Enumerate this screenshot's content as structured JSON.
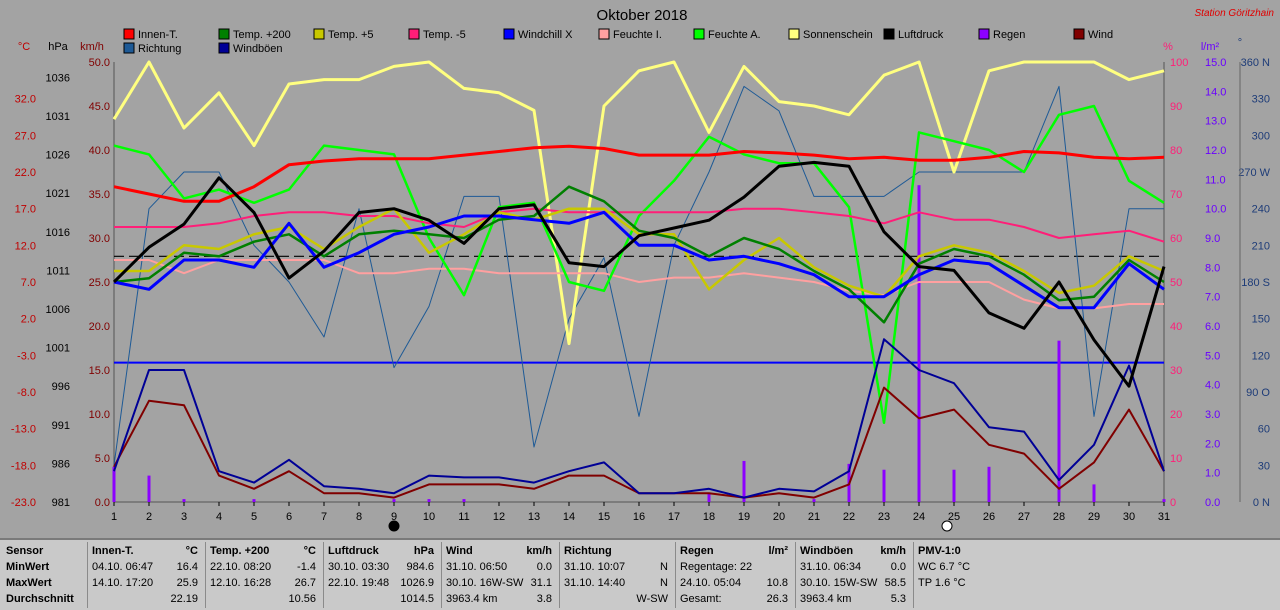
{
  "station": "Station Göritzhain",
  "colors": {
    "innen": "#ff0000",
    "t200": "#008000",
    "t5": "#c8c800",
    "tm5": "#ff1e78",
    "windchill": "#0000ff",
    "feuchteI": "#ffa0a0",
    "feuchteA": "#00ff00",
    "sonne": "#ffff80",
    "luftdruck": "#000000",
    "regen": "#8c00ff",
    "wind": "#800000",
    "richtung": "#1e5a96",
    "windboeen": "#000096"
  },
  "chart_data": {
    "type": "line",
    "title": "Oktober 2018",
    "x": [
      1,
      2,
      3,
      4,
      5,
      6,
      7,
      8,
      9,
      10,
      11,
      12,
      13,
      14,
      15,
      16,
      17,
      18,
      19,
      20,
      21,
      22,
      23,
      24,
      25,
      26,
      27,
      28,
      29,
      30,
      31
    ],
    "axes": {
      "temp": {
        "unit": "°C",
        "range": [
          -23,
          37
        ],
        "ticks": [
          "-23.0",
          "-18.0",
          "-13.0",
          "-8.0",
          "-3.0",
          "2.0",
          "7.0",
          "12.0",
          "17.0",
          "22.0",
          "27.0",
          "32.0"
        ],
        "tick_values": [
          -23,
          -18,
          -13,
          -8,
          -3,
          2,
          7,
          12,
          17,
          22,
          27,
          32
        ]
      },
      "pressure": {
        "unit": "hPa",
        "range": [
          981,
          1038
        ],
        "ticks": [
          "981",
          "986",
          "991",
          "996",
          "1001",
          "1006",
          "1011",
          "1016",
          "1021",
          "1026",
          "1031",
          "1036"
        ],
        "tick_values": [
          981,
          986,
          991,
          996,
          1001,
          1006,
          1011,
          1016,
          1021,
          1026,
          1031,
          1036
        ]
      },
      "wind": {
        "unit": "km/h",
        "range": [
          0,
          50
        ],
        "ticks": [
          "0.0",
          "5.0",
          "10.0",
          "15.0",
          "20.0",
          "25.0",
          "30.0",
          "35.0",
          "40.0",
          "45.0",
          "50.0"
        ],
        "tick_values": [
          0,
          5,
          10,
          15,
          20,
          25,
          30,
          35,
          40,
          45,
          50
        ]
      },
      "humidity": {
        "unit": "%",
        "range": [
          0,
          100
        ],
        "ticks": [
          "0",
          "10",
          "20",
          "30",
          "40",
          "50",
          "60",
          "70",
          "80",
          "90",
          "100"
        ],
        "tick_values": [
          0,
          10,
          20,
          30,
          40,
          50,
          60,
          70,
          80,
          90,
          100
        ]
      },
      "rain": {
        "unit": "l/m²",
        "range": [
          0,
          15
        ],
        "ticks": [
          "0.0",
          "1.0",
          "2.0",
          "3.0",
          "4.0",
          "5.0",
          "6.0",
          "7.0",
          "8.0",
          "9.0",
          "10.0",
          "11.0",
          "12.0",
          "13.0",
          "14.0",
          "15.0"
        ],
        "tick_values": [
          0,
          1,
          2,
          3,
          4,
          5,
          6,
          7,
          8,
          9,
          10,
          11,
          12,
          13,
          14,
          15
        ]
      },
      "direction": {
        "unit": "°",
        "range": [
          0,
          360
        ],
        "ticks": [
          "0 N",
          "30",
          "60",
          "90 O",
          "120",
          "150",
          "180 S",
          "210",
          "240",
          "270 W",
          "300",
          "330",
          "360 N"
        ],
        "tick_values": [
          0,
          30,
          60,
          90,
          120,
          150,
          180,
          210,
          240,
          270,
          300,
          330,
          360
        ]
      }
    },
    "series": [
      {
        "name": "Innen-T.",
        "key": "innen",
        "axis": "temp",
        "values": [
          20.0,
          19.0,
          18.0,
          18.0,
          20.0,
          23.0,
          23.5,
          23.8,
          23.8,
          23.8,
          24.3,
          24.8,
          25.3,
          25.5,
          25.2,
          24.3,
          24.3,
          24.3,
          24.8,
          24.6,
          24.3,
          23.8,
          24.0,
          23.6,
          23.6,
          24.0,
          24.8,
          24.6,
          24.0,
          23.8,
          24.0
        ]
      },
      {
        "name": "Temp. +200",
        "key": "t200",
        "axis": "temp",
        "values": [
          7.0,
          7.5,
          11.0,
          10.5,
          12.5,
          13.5,
          10.5,
          13.5,
          14.0,
          13.5,
          13.0,
          15.5,
          16.0,
          20.0,
          18.0,
          14.0,
          13.0,
          10.5,
          13.0,
          11.5,
          8.5,
          6.0,
          1.5,
          9.5,
          11.5,
          10.5,
          8.0,
          4.5,
          5.0,
          10.0,
          7.0
        ]
      },
      {
        "name": "Temp. +5",
        "key": "t5",
        "axis": "temp",
        "values": [
          8.5,
          8.5,
          12.0,
          11.5,
          13.5,
          14.5,
          11.5,
          14.5,
          17.0,
          11.0,
          13.5,
          16.5,
          15.5,
          17.0,
          17.0,
          13.5,
          13.5,
          6.0,
          10.0,
          13.0,
          9.0,
          6.5,
          5.0,
          10.5,
          12.0,
          11.0,
          8.5,
          5.5,
          6.5,
          10.5,
          8.5
        ]
      },
      {
        "name": "Temp. -5",
        "key": "tm5",
        "axis": "temp",
        "values": [
          14.5,
          14.5,
          14.5,
          15.0,
          16.0,
          16.5,
          16.5,
          16.0,
          16.0,
          15.0,
          14.5,
          16.5,
          17.0,
          16.5,
          16.5,
          16.5,
          16.5,
          16.5,
          17.0,
          17.0,
          16.5,
          16.0,
          15.0,
          16.5,
          15.5,
          15.5,
          14.5,
          13.0,
          13.5,
          14.0,
          12.5
        ]
      },
      {
        "name": "Windchill X",
        "key": "windchill",
        "axis": "temp",
        "values": [
          7.0,
          6.0,
          10.0,
          10.0,
          9.0,
          15.0,
          9.0,
          11.0,
          13.5,
          14.5,
          16.0,
          16.0,
          15.5,
          15.0,
          16.5,
          12.0,
          12.0,
          10.0,
          10.5,
          9.5,
          8.0,
          5.0,
          5.0,
          8.0,
          10.0,
          9.5,
          6.5,
          3.5,
          3.5,
          9.5,
          6.0
        ]
      },
      {
        "name": "Feuchte I.",
        "key": "feuchteI",
        "axis": "humidity",
        "values": [
          55,
          55,
          52,
          55,
          55,
          55,
          55,
          52,
          52,
          53,
          53,
          52,
          52,
          52,
          52,
          50,
          51,
          51,
          52,
          51,
          50,
          48,
          47,
          50,
          50,
          50,
          46,
          44,
          44,
          45,
          45
        ]
      },
      {
        "name": "Feuchte A.",
        "key": "feuchteA",
        "axis": "humidity",
        "values": [
          81,
          79,
          69,
          71,
          68,
          71,
          81,
          80,
          79,
          60,
          47,
          67,
          68,
          50,
          48,
          65,
          73,
          83,
          79,
          77,
          77,
          67,
          18,
          84,
          82,
          80,
          75,
          88,
          90,
          73,
          68
        ]
      },
      {
        "name": "Sonnenschein",
        "key": "sonne",
        "axis": "wind",
        "values": [
          43.5,
          50.0,
          42.5,
          46.5,
          40.5,
          47.5,
          48.0,
          48.0,
          49.5,
          50.0,
          47.0,
          46.5,
          44.5,
          18.0,
          45.0,
          49.0,
          50.0,
          42.0,
          49.5,
          45.5,
          45.0,
          44.0,
          48.5,
          50.0,
          37.5,
          49.0,
          50.0,
          50.0,
          50.0,
          48.0,
          49.0
        ]
      },
      {
        "name": "Luftdruck",
        "key": "luftdruck",
        "axis": "pressure",
        "values": [
          1009.5,
          1014.0,
          1017.0,
          1023.0,
          1018.5,
          1010.0,
          1013.5,
          1018.5,
          1019.0,
          1017.5,
          1014.5,
          1019.0,
          1019.5,
          1012.0,
          1011.5,
          1015.5,
          1016.5,
          1017.5,
          1020.5,
          1024.5,
          1025.0,
          1024.5,
          1016.0,
          1011.5,
          1011.0,
          1005.5,
          1003.5,
          1009.5,
          1002.0,
          996.0,
          1011.5
        ]
      },
      {
        "name": "Wind",
        "key": "wind",
        "axis": "wind",
        "values": [
          4.0,
          11.5,
          11.0,
          3.0,
          1.5,
          3.5,
          1.0,
          1.0,
          0.5,
          2.0,
          2.0,
          2.0,
          1.5,
          3.0,
          3.0,
          1.0,
          1.0,
          1.0,
          0.5,
          1.0,
          0.5,
          2.0,
          13.0,
          9.5,
          10.5,
          6.5,
          5.5,
          1.5,
          4.5,
          10.5,
          3.5
        ]
      },
      {
        "name": "Richtung",
        "key": "richtung",
        "axis": "direction",
        "values": [
          30,
          240,
          270,
          270,
          210,
          180,
          135,
          240,
          110,
          160,
          250,
          250,
          45,
          150,
          200,
          70,
          210,
          270,
          340,
          320,
          250,
          250,
          250,
          270,
          270,
          270,
          270,
          340,
          70,
          240,
          240
        ]
      },
      {
        "name": "Windböen",
        "key": "windboeen",
        "axis": "wind",
        "values": [
          3.5,
          15.0,
          15.0,
          3.5,
          2.2,
          4.8,
          1.8,
          1.5,
          1.0,
          3.0,
          2.8,
          2.8,
          2.2,
          3.5,
          4.5,
          1.0,
          1.0,
          1.5,
          0.5,
          1.5,
          1.2,
          3.5,
          18.5,
          15.0,
          13.5,
          8.5,
          8.0,
          2.5,
          6.5,
          15.5,
          3.5
        ]
      }
    ],
    "bars": {
      "name": "Regen",
      "key": "regen",
      "axis": "rain",
      "values": [
        1.2,
        0.9,
        0.1,
        0,
        0.1,
        0,
        0,
        0,
        0.1,
        0.1,
        0.1,
        0,
        0,
        0,
        0,
        0,
        0,
        0.3,
        1.4,
        0,
        0.1,
        1.3,
        1.1,
        10.8,
        1.1,
        1.2,
        0,
        5.5,
        0.6,
        0,
        0.1
      ]
    },
    "reference_lines": [
      {
        "axis": "temp",
        "value": -4.0,
        "key": "windchill",
        "style": "solid"
      },
      {
        "axis": "temp",
        "value": 10.5,
        "key": "luftdruck",
        "style": "dashed"
      }
    ],
    "moon_markers": [
      {
        "day": 9,
        "fill": "#000000"
      },
      {
        "day": 24.8,
        "fill": "#ffffff"
      }
    ],
    "legend": [
      {
        "label": "Innen-T.",
        "key": "innen"
      },
      {
        "label": "Temp. +200",
        "key": "t200"
      },
      {
        "label": "Temp. +5",
        "key": "t5"
      },
      {
        "label": "Temp. -5",
        "key": "tm5"
      },
      {
        "label": "Windchill X",
        "key": "windchill"
      },
      {
        "label": "Feuchte I.",
        "key": "feuchteI"
      },
      {
        "label": "Feuchte A.",
        "key": "feuchteA"
      },
      {
        "label": "Sonnenschein",
        "key": "sonne"
      },
      {
        "label": "Luftdruck",
        "key": "luftdruck"
      },
      {
        "label": "Regen",
        "key": "regen"
      },
      {
        "label": "Wind",
        "key": "wind"
      },
      {
        "label": "Richtung",
        "key": "richtung"
      },
      {
        "label": "Windböen",
        "key": "windboeen"
      }
    ]
  },
  "stats": {
    "row_labels": [
      "Sensor",
      "MinWert",
      "MaxWert",
      "Durchschnitt"
    ],
    "columns": [
      {
        "title": "Innen-T.",
        "unit": "°C",
        "min": [
          "04.10. 06:47",
          "16.4"
        ],
        "max": [
          "14.10. 17:20",
          "25.9"
        ],
        "avg": [
          "",
          "22.19"
        ]
      },
      {
        "title": "Temp. +200",
        "unit": "°C",
        "min": [
          "22.10. 08:20",
          "-1.4"
        ],
        "max": [
          "12.10. 16:28",
          "26.7"
        ],
        "avg": [
          "",
          "10.56"
        ]
      },
      {
        "title": "Luftdruck",
        "unit": "hPa",
        "min": [
          "30.10. 03:30",
          "984.6"
        ],
        "max": [
          "22.10. 19:48",
          "1026.9"
        ],
        "avg": [
          "",
          "1014.5"
        ]
      },
      {
        "title": "Wind",
        "unit": "km/h",
        "min": [
          "31.10. 06:50",
          "0.0"
        ],
        "max": [
          "30.10. 16W-SW",
          "31.1"
        ],
        "avg": [
          "3963.4 km",
          "3.8"
        ]
      },
      {
        "title": "Richtung",
        "unit": "",
        "min": [
          "31.10. 10:07",
          "N"
        ],
        "max": [
          "31.10. 14:40",
          "N"
        ],
        "avg": [
          "",
          "W-SW"
        ]
      },
      {
        "title": "Regen",
        "unit": "l/m²",
        "min": [
          "Regentage: 22",
          ""
        ],
        "max": [
          "24.10. 05:04",
          "10.8"
        ],
        "avg": [
          "Gesamt:",
          "26.3"
        ]
      },
      {
        "title": "Windböen",
        "unit": "km/h",
        "min": [
          "31.10. 06:34",
          "0.0"
        ],
        "max": [
          "30.10. 15W-SW",
          "58.5"
        ],
        "avg": [
          "3963.4 km",
          "5.3"
        ]
      },
      {
        "title": "PMV-1:0",
        "unit": "",
        "min": [
          "WC 6.7 °C",
          ""
        ],
        "max": [
          "TP 1.6 °C",
          ""
        ],
        "avg": [
          "",
          ""
        ]
      }
    ]
  }
}
